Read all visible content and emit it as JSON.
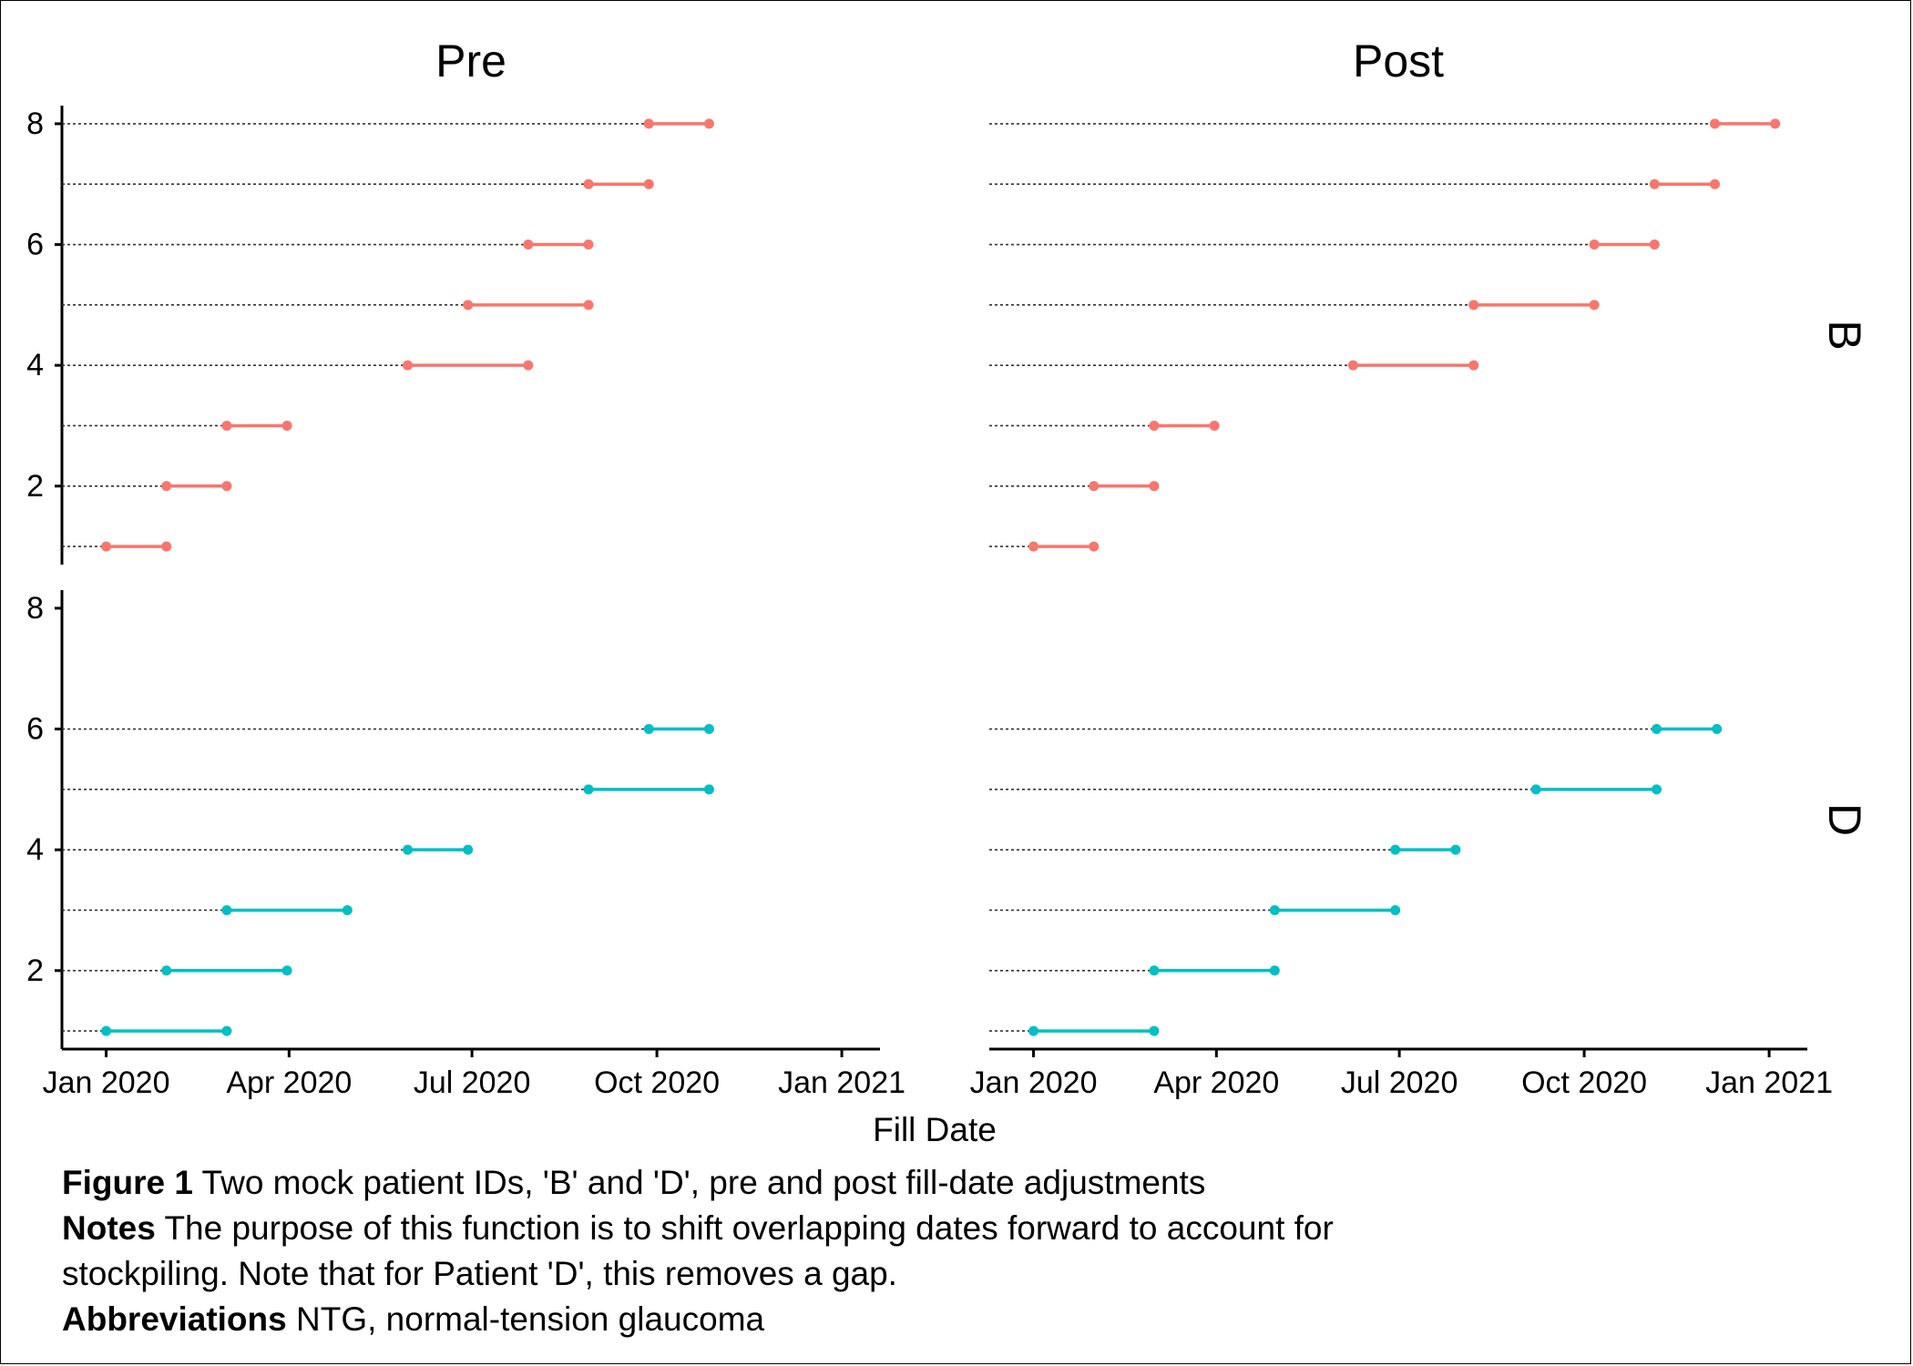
{
  "chart_data": {
    "type": "line",
    "panel_columns": [
      "Pre",
      "Post"
    ],
    "panel_rows": [
      "B",
      "D"
    ],
    "xlabel": "Fill Date",
    "ylabel": "",
    "xlim": [
      "2019-12-10",
      "2021-01-20"
    ],
    "x_ticks": [
      {
        "date": "2020-01-01",
        "label": "Jan 2020"
      },
      {
        "date": "2020-04-01",
        "label": "Apr 2020"
      },
      {
        "date": "2020-07-01",
        "label": "Jul 2020"
      },
      {
        "date": "2020-10-01",
        "label": "Oct 2020"
      },
      {
        "date": "2021-01-01",
        "label": "Jan 2021"
      }
    ],
    "y_ticks": [
      2,
      4,
      6,
      8
    ],
    "grid": "dotted guide from left edge to segment start",
    "colors": {
      "B": "#F8766D",
      "D": "#00BFC4",
      "guide": "#333333",
      "axis": "#000000"
    },
    "panels": [
      {
        "column": "Pre",
        "row": "B",
        "ylim": [
          0.7,
          8.3
        ],
        "segments": [
          {
            "y": 1,
            "start": "2020-01-01",
            "end": "2020-01-31"
          },
          {
            "y": 2,
            "start": "2020-01-31",
            "end": "2020-03-01"
          },
          {
            "y": 3,
            "start": "2020-03-01",
            "end": "2020-03-31"
          },
          {
            "y": 4,
            "start": "2020-05-30",
            "end": "2020-07-29"
          },
          {
            "y": 5,
            "start": "2020-06-29",
            "end": "2020-08-28"
          },
          {
            "y": 6,
            "start": "2020-07-29",
            "end": "2020-08-28"
          },
          {
            "y": 7,
            "start": "2020-08-28",
            "end": "2020-09-27"
          },
          {
            "y": 8,
            "start": "2020-09-27",
            "end": "2020-10-27"
          }
        ]
      },
      {
        "column": "Post",
        "row": "B",
        "ylim": [
          0.7,
          8.3
        ],
        "segments": [
          {
            "y": 1,
            "start": "2020-01-01",
            "end": "2020-01-31"
          },
          {
            "y": 2,
            "start": "2020-01-31",
            "end": "2020-03-01"
          },
          {
            "y": 3,
            "start": "2020-03-01",
            "end": "2020-03-31"
          },
          {
            "y": 4,
            "start": "2020-06-08",
            "end": "2020-08-07"
          },
          {
            "y": 5,
            "start": "2020-08-07",
            "end": "2020-10-06"
          },
          {
            "y": 6,
            "start": "2020-10-06",
            "end": "2020-11-05"
          },
          {
            "y": 7,
            "start": "2020-11-05",
            "end": "2020-12-05"
          },
          {
            "y": 8,
            "start": "2020-12-05",
            "end": "2021-01-04"
          }
        ]
      },
      {
        "column": "Pre",
        "row": "D",
        "ylim": [
          0.7,
          8.3
        ],
        "segments": [
          {
            "y": 1,
            "start": "2020-01-01",
            "end": "2020-03-01"
          },
          {
            "y": 2,
            "start": "2020-01-31",
            "end": "2020-03-31"
          },
          {
            "y": 3,
            "start": "2020-03-01",
            "end": "2020-04-30"
          },
          {
            "y": 4,
            "start": "2020-05-30",
            "end": "2020-06-29"
          },
          {
            "y": 5,
            "start": "2020-08-28",
            "end": "2020-10-27"
          },
          {
            "y": 6,
            "start": "2020-09-27",
            "end": "2020-10-27"
          }
        ]
      },
      {
        "column": "Post",
        "row": "D",
        "ylim": [
          0.7,
          8.3
        ],
        "segments": [
          {
            "y": 1,
            "start": "2020-01-01",
            "end": "2020-03-01"
          },
          {
            "y": 2,
            "start": "2020-03-01",
            "end": "2020-04-30"
          },
          {
            "y": 3,
            "start": "2020-04-30",
            "end": "2020-06-29"
          },
          {
            "y": 4,
            "start": "2020-06-29",
            "end": "2020-07-29"
          },
          {
            "y": 5,
            "start": "2020-09-07",
            "end": "2020-11-06"
          },
          {
            "y": 6,
            "start": "2020-11-06",
            "end": "2020-12-06"
          }
        ]
      }
    ]
  },
  "caption": {
    "figure_label": "Figure 1",
    "figure_text": "Two mock patient IDs, 'B' and 'D', pre and post fill-date adjustments",
    "notes_label": "Notes",
    "notes_text": "The purpose of this function is to shift overlapping dates forward to account for",
    "notes_text_2": "stockpiling. Note that for Patient 'D', this removes a gap.",
    "abbrev_label": "Abbreviations",
    "abbrev_text": "NTG, normal-tension glaucoma"
  }
}
